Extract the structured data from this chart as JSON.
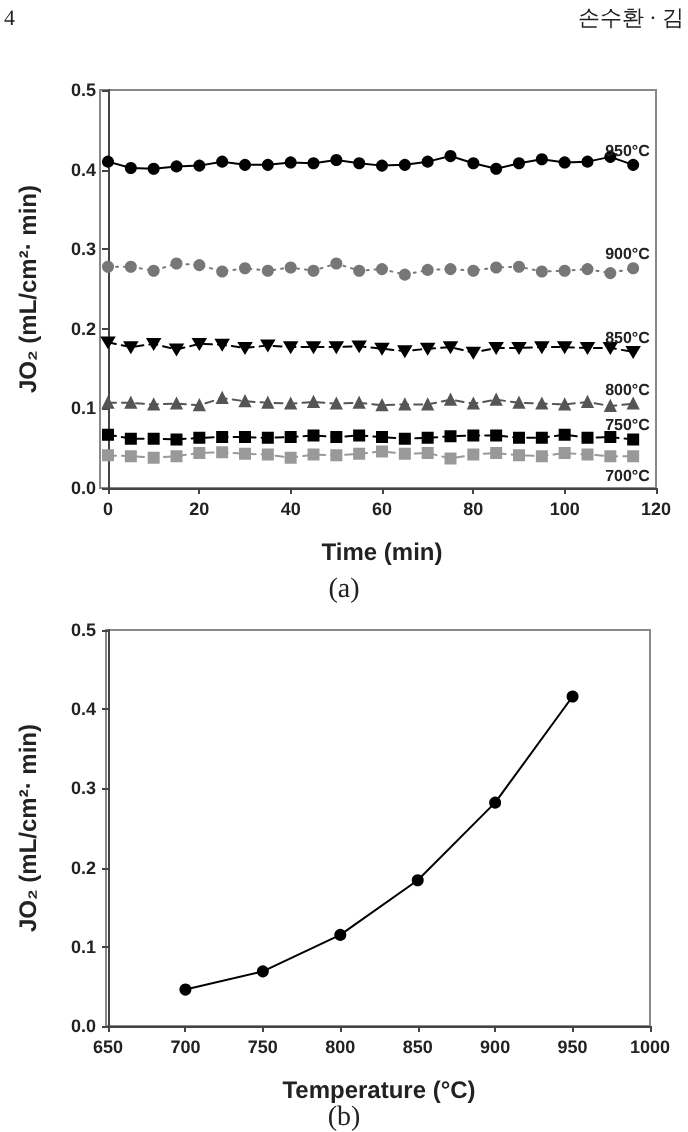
{
  "chart_data": [
    {
      "type": "line",
      "annotations": [
        "4",
        "손수환 · 김",
        "(a)"
      ],
      "xlabel": "Time (min)",
      "ylabel": "JO₂ (mL/cm²· min)",
      "x": [
        0,
        5,
        10,
        15,
        20,
        25,
        30,
        35,
        40,
        45,
        50,
        55,
        60,
        65,
        70,
        75,
        80,
        85,
        90,
        95,
        100,
        105,
        110,
        115
      ],
      "xlim": [
        0,
        120
      ],
      "xticks": [
        0,
        20,
        40,
        60,
        80,
        100,
        120
      ],
      "ylim": [
        0,
        0.5
      ],
      "yticks": [
        {
          "value": 0,
          "label": "0.0"
        },
        0.1,
        0.2,
        0.3,
        0.4,
        0.5
      ],
      "grid": false,
      "legend": false,
      "series": [
        {
          "name": "950°C",
          "color": "#000000",
          "marker": "circle",
          "line_style": "solid",
          "values": [
            0.41,
            0.402,
            0.401,
            0.404,
            0.405,
            0.41,
            0.406,
            0.406,
            0.409,
            0.408,
            0.412,
            0.408,
            0.405,
            0.406,
            0.41,
            0.417,
            0.408,
            0.401,
            0.408,
            0.413,
            0.409,
            0.41,
            0.416,
            0.406
          ]
        },
        {
          "name": "900°C",
          "color": "#777777",
          "marker": "circle",
          "line_style": "dotted",
          "values": [
            0.278,
            0.278,
            0.273,
            0.282,
            0.28,
            0.272,
            0.276,
            0.273,
            0.277,
            0.273,
            0.282,
            0.273,
            0.275,
            0.268,
            0.274,
            0.275,
            0.273,
            0.277,
            0.278,
            0.272,
            0.273,
            0.275,
            0.27,
            0.276
          ]
        },
        {
          "name": "850°C",
          "color": "#000000",
          "marker": "triangle-down",
          "line_style": "dashed",
          "values": [
            0.183,
            0.177,
            0.181,
            0.174,
            0.181,
            0.18,
            0.176,
            0.179,
            0.177,
            0.177,
            0.177,
            0.178,
            0.175,
            0.172,
            0.175,
            0.177,
            0.17,
            0.176,
            0.176,
            0.177,
            0.177,
            0.176,
            0.176,
            0.171
          ]
        },
        {
          "name": "800°C",
          "color": "#555555",
          "marker": "triangle",
          "line_style": "dashed",
          "values": [
            0.107,
            0.107,
            0.105,
            0.106,
            0.104,
            0.113,
            0.109,
            0.107,
            0.106,
            0.108,
            0.106,
            0.107,
            0.104,
            0.105,
            0.105,
            0.111,
            0.106,
            0.111,
            0.107,
            0.106,
            0.105,
            0.108,
            0.103,
            0.106
          ]
        },
        {
          "name": "750°C",
          "color": "#000000",
          "marker": "square",
          "line_style": "dashed",
          "values": [
            0.067,
            0.062,
            0.062,
            0.061,
            0.063,
            0.064,
            0.064,
            0.063,
            0.064,
            0.066,
            0.064,
            0.066,
            0.064,
            0.062,
            0.063,
            0.065,
            0.066,
            0.066,
            0.063,
            0.063,
            0.067,
            0.063,
            0.064,
            0.061
          ]
        },
        {
          "name": "700°C",
          "color": "#999999",
          "marker": "square",
          "line_style": "dashed",
          "values": [
            0.041,
            0.04,
            0.038,
            0.04,
            0.044,
            0.045,
            0.043,
            0.042,
            0.038,
            0.042,
            0.041,
            0.043,
            0.046,
            0.043,
            0.044,
            0.037,
            0.042,
            0.044,
            0.041,
            0.04,
            0.044,
            0.042,
            0.04,
            0.04
          ]
        }
      ]
    },
    {
      "type": "line",
      "annotations": [
        "(b)"
      ],
      "xlabel": "Temperature (°C)",
      "ylabel": "JO₂ (mL/cm²· min)",
      "x": [
        700,
        750,
        800,
        850,
        900,
        950
      ],
      "xlim": [
        650,
        1000
      ],
      "xticks": [
        650,
        700,
        750,
        800,
        850,
        900,
        950,
        1000
      ],
      "ylim": [
        0,
        0.5
      ],
      "yticks": [
        {
          "value": 0,
          "label": "0.0"
        },
        0.1,
        0.2,
        0.3,
        0.4,
        0.5
      ],
      "grid": false,
      "legend": false,
      "series": [
        {
          "color": "#000000",
          "marker": "circle",
          "line_style": "solid",
          "values": [
            0.046,
            0.069,
            0.115,
            0.184,
            0.282,
            0.416
          ]
        }
      ]
    }
  ]
}
